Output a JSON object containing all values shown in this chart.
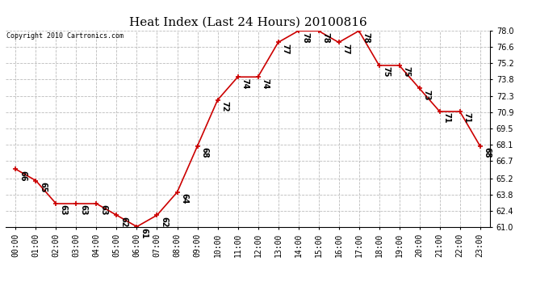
{
  "title": "Heat Index (Last 24 Hours) 20100816",
  "copyright": "Copyright 2010 Cartronics.com",
  "hours": [
    "00:00",
    "01:00",
    "02:00",
    "03:00",
    "04:00",
    "05:00",
    "06:00",
    "07:00",
    "08:00",
    "09:00",
    "10:00",
    "11:00",
    "12:00",
    "13:00",
    "14:00",
    "15:00",
    "16:00",
    "17:00",
    "18:00",
    "19:00",
    "20:00",
    "21:00",
    "22:00",
    "23:00"
  ],
  "values": [
    66,
    65,
    63,
    63,
    63,
    62,
    61,
    62,
    64,
    68,
    72,
    74,
    74,
    77,
    78,
    78,
    77,
    78,
    75,
    75,
    73,
    71,
    71,
    68
  ],
  "line_color": "#cc0000",
  "marker_color": "#cc0000",
  "bg_color": "#ffffff",
  "grid_color": "#bbbbbb",
  "ylim_min": 61.0,
  "ylim_max": 78.0,
  "yticks": [
    61.0,
    62.4,
    63.8,
    65.2,
    66.7,
    68.1,
    69.5,
    70.9,
    72.3,
    73.8,
    75.2,
    76.6,
    78.0
  ],
  "title_fontsize": 11,
  "label_fontsize": 7,
  "annotation_fontsize": 7,
  "copyright_fontsize": 6
}
